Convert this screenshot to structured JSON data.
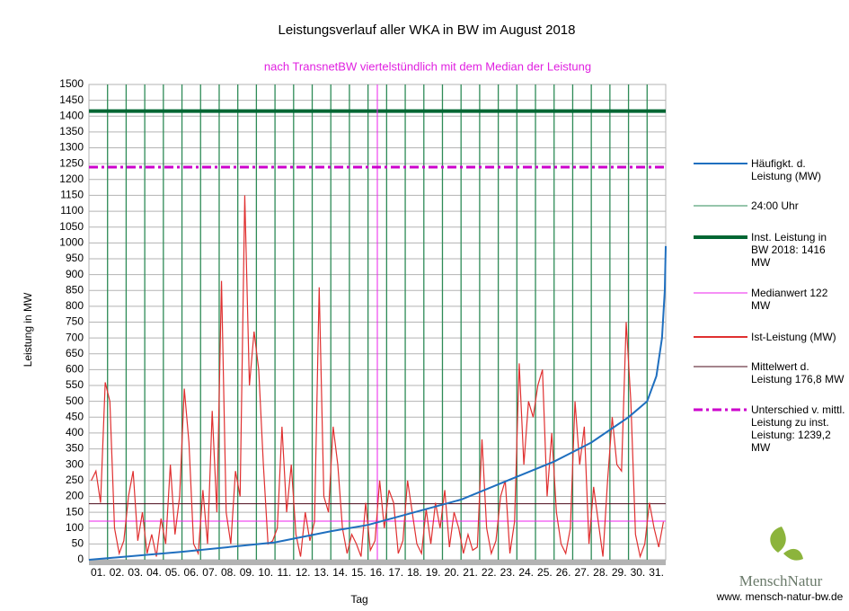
{
  "chart_data": {
    "type": "line",
    "title": "Leistungsverlauf aller WKA in BW im August 2018",
    "subtitle": "nach TransnetBW viertelstündlich mit dem Median der Leistung",
    "x_label": "Tag",
    "y_label": "Leistung in MW",
    "categories": [
      "01.",
      "02.",
      "03.",
      "04.",
      "05.",
      "06.",
      "07.",
      "08.",
      "09.",
      "10.",
      "11.",
      "12.",
      "13.",
      "14.",
      "15.",
      "16.",
      "17.",
      "18.",
      "19.",
      "20.",
      "21.",
      "22.",
      "23.",
      "24.",
      "25.",
      "26.",
      "27.",
      "28.",
      "29.",
      "30.",
      "31."
    ],
    "xlim": [
      0,
      31
    ],
    "ylim": [
      0,
      1500
    ],
    "yticks": [
      0,
      50,
      100,
      150,
      200,
      250,
      300,
      350,
      400,
      450,
      500,
      550,
      600,
      650,
      700,
      750,
      800,
      850,
      900,
      950,
      1000,
      1050,
      1100,
      1150,
      1200,
      1250,
      1300,
      1350,
      1400,
      1450,
      1500
    ],
    "grid": true,
    "series": [
      {
        "name": "Häufigkt. d. Leistung (MW)",
        "color": "#1f6fbf",
        "style": "curve",
        "x": [
          0,
          5,
          10,
          13,
          15,
          20,
          22.5,
          25,
          27,
          29,
          30,
          30.5,
          30.8,
          30.95,
          31
        ],
        "values": [
          0,
          25,
          55,
          90,
          110,
          190,
          250,
          310,
          370,
          450,
          500,
          580,
          700,
          850,
          990
        ]
      },
      {
        "name": "24:00 Uhr",
        "color": "#2e8b57",
        "style": "vlines",
        "x": [
          1,
          2,
          3,
          4,
          5,
          6,
          7,
          8,
          9,
          10,
          11,
          12,
          13,
          14,
          15,
          16,
          17,
          18,
          19,
          20,
          21,
          22,
          23,
          24,
          25,
          26,
          27,
          28,
          29,
          30
        ]
      },
      {
        "name": "Inst. Leistung in BW 2018: 1416 MW",
        "color": "#006633",
        "style": "hline-thick",
        "value": 1416
      },
      {
        "name": "Medianwert 122 MW",
        "color": "#ee22ee",
        "style": "hline-median",
        "value": 122,
        "x": 15.5
      },
      {
        "name": "Ist-Leistung (MW)",
        "color": "#e03030",
        "style": "curve",
        "x": [
          0.125,
          0.375,
          0.625,
          0.875,
          1.125,
          1.375,
          1.625,
          1.875,
          2.125,
          2.375,
          2.625,
          2.875,
          3.125,
          3.375,
          3.625,
          3.875,
          4.125,
          4.375,
          4.625,
          4.875,
          5.125,
          5.375,
          5.625,
          5.875,
          6.125,
          6.375,
          6.625,
          6.875,
          7.125,
          7.375,
          7.625,
          7.875,
          8.125,
          8.375,
          8.625,
          8.875,
          9.125,
          9.375,
          9.625,
          9.875,
          10.125,
          10.375,
          10.625,
          10.875,
          11.125,
          11.375,
          11.625,
          11.875,
          12.125,
          12.375,
          12.625,
          12.875,
          13.125,
          13.375,
          13.625,
          13.875,
          14.125,
          14.375,
          14.625,
          14.875,
          15.125,
          15.375,
          15.625,
          15.875,
          16.125,
          16.375,
          16.625,
          16.875,
          17.125,
          17.375,
          17.625,
          17.875,
          18.125,
          18.375,
          18.625,
          18.875,
          19.125,
          19.375,
          19.625,
          19.875,
          20.125,
          20.375,
          20.625,
          20.875,
          21.125,
          21.375,
          21.625,
          21.875,
          22.125,
          22.375,
          22.625,
          22.875,
          23.125,
          23.375,
          23.625,
          23.875,
          24.125,
          24.375,
          24.625,
          24.875,
          25.125,
          25.375,
          25.625,
          25.875,
          26.125,
          26.375,
          26.625,
          26.875,
          27.125,
          27.375,
          27.625,
          27.875,
          28.125,
          28.375,
          28.625,
          28.875,
          29.125,
          29.375,
          29.625,
          29.875,
          30.125,
          30.375,
          30.625,
          30.875
        ],
        "values": [
          250,
          280,
          180,
          560,
          500,
          100,
          20,
          60,
          200,
          280,
          60,
          150,
          20,
          80,
          10,
          130,
          50,
          300,
          80,
          200,
          540,
          370,
          50,
          20,
          220,
          50,
          470,
          150,
          880,
          150,
          50,
          280,
          200,
          1150,
          550,
          720,
          600,
          300,
          50,
          60,
          100,
          420,
          150,
          300,
          80,
          10,
          150,
          60,
          120,
          860,
          200,
          150,
          420,
          300,
          100,
          20,
          80,
          50,
          10,
          180,
          30,
          60,
          250,
          100,
          220,
          180,
          20,
          60,
          250,
          150,
          50,
          20,
          160,
          50,
          180,
          100,
          220,
          40,
          150,
          100,
          20,
          80,
          30,
          40,
          380,
          100,
          20,
          60,
          200,
          250,
          20,
          120,
          620,
          300,
          500,
          450,
          550,
          600,
          200,
          400,
          150,
          50,
          20,
          100,
          500,
          300,
          420,
          50,
          230,
          120,
          10,
          250,
          450,
          300,
          280,
          750,
          500,
          80,
          10,
          50,
          180,
          100,
          40,
          120
        ]
      },
      {
        "name": "Mittelwert d. Leistung 176,8 MW",
        "color": "#4a0a1a",
        "style": "hline",
        "value": 176.8
      },
      {
        "name": "Unterschied v. mittl. Leistung zu inst. Leistung: 1239,2 MW",
        "color": "#cc00cc",
        "style": "hline-dash",
        "value": 1239.2
      }
    ]
  },
  "logo": {
    "text": "MenschNatur",
    "url": "www. mensch-natur-bw.de"
  }
}
